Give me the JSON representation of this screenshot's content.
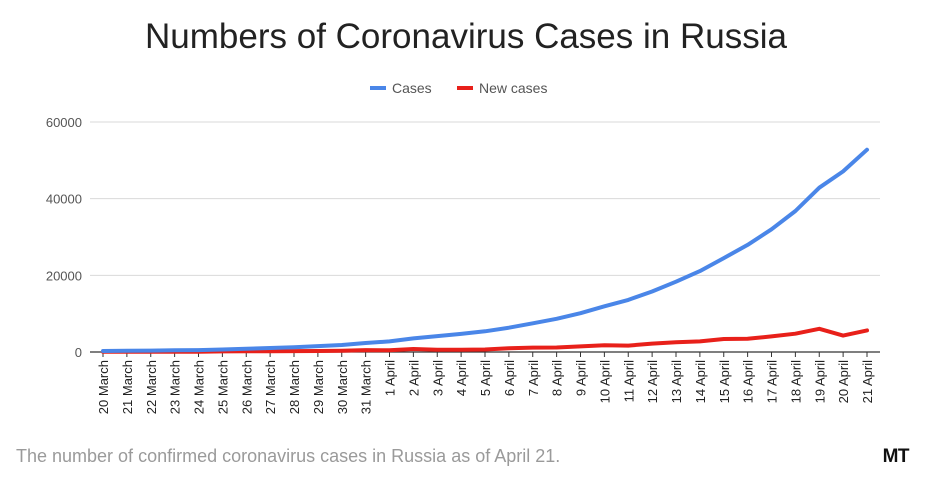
{
  "chart_data": {
    "type": "line",
    "title": "Numbers of Coronavirus Cases in Russia",
    "xlabel": "",
    "ylabel": "",
    "ylim": [
      0,
      60000
    ],
    "yticks": [
      "0",
      "20000",
      "40000",
      "60000"
    ],
    "grid": true,
    "legend_position": "top-center",
    "categories": [
      "20 March",
      "21 March",
      "22 March",
      "23 March",
      "24 March",
      "25 March",
      "26 March",
      "27 March",
      "28 March",
      "29 March",
      "30 March",
      "31 March",
      "1 April",
      "2 April",
      "3 April",
      "4 April",
      "5 April",
      "6 April",
      "7 April",
      "8 April",
      "9 April",
      "10 April",
      "11 April",
      "12 April",
      "13 April",
      "14 April",
      "15 April",
      "16 April",
      "17 April",
      "18 April",
      "19 April",
      "20 April",
      "21 April"
    ],
    "series": [
      {
        "name": "Cases",
        "color": "#4a86e8",
        "values": [
          253,
          306,
          367,
          438,
          495,
          658,
          840,
          1036,
          1264,
          1534,
          1836,
          2337,
          2777,
          3548,
          4149,
          4731,
          5389,
          6343,
          7497,
          8672,
          10131,
          11917,
          13584,
          15770,
          18328,
          21102,
          24490,
          27938,
          32008,
          36793,
          42853,
          47121,
          52763
        ]
      },
      {
        "name": "New cases",
        "color": "#e8201a",
        "values": [
          54,
          53,
          61,
          71,
          57,
          163,
          182,
          196,
          228,
          270,
          302,
          501,
          440,
          771,
          601,
          582,
          658,
          954,
          1154,
          1175,
          1459,
          1786,
          1667,
          2186,
          2558,
          2774,
          3388,
          3448,
          4070,
          4785,
          6060,
          4268,
          5642
        ]
      }
    ]
  },
  "caption": "The number of confirmed coronavirus cases in Russia as of April 21.",
  "logo": "MT"
}
